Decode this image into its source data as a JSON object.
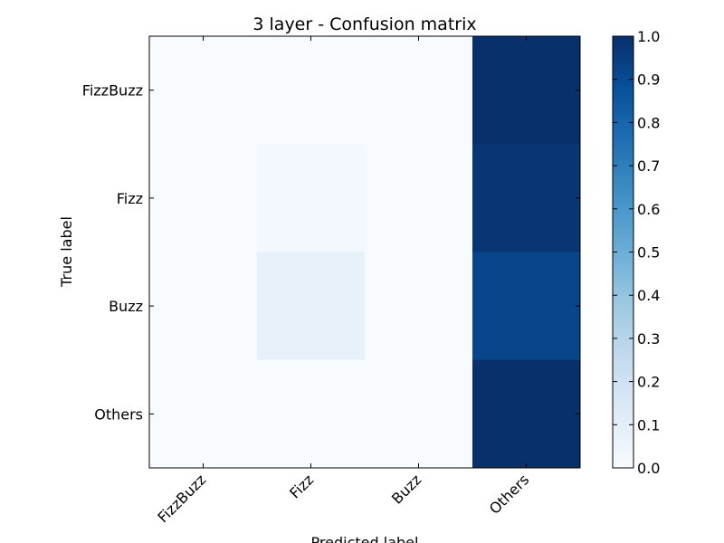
{
  "chart_data": {
    "type": "heatmap",
    "title": "3 layer - Confusion matrix",
    "xlabel": "Predicted label",
    "ylabel": "True label",
    "x_categories": [
      "FizzBuzz",
      "Fizz",
      "Buzz",
      "Others"
    ],
    "y_categories": [
      "FizzBuzz",
      "Fizz",
      "Buzz",
      "Others"
    ],
    "values": [
      [
        0.0,
        0.0,
        0.0,
        1.0
      ],
      [
        0.0,
        0.02,
        0.0,
        0.98
      ],
      [
        0.0,
        0.08,
        0.0,
        0.92
      ],
      [
        0.0,
        0.0,
        0.0,
        1.0
      ]
    ],
    "colorscale": "Blues",
    "color_range": [
      0.0,
      1.0
    ],
    "colorbar_ticks": [
      "0.0",
      "0.1",
      "0.2",
      "0.3",
      "0.4",
      "0.5",
      "0.6",
      "0.7",
      "0.8",
      "0.9",
      "1.0"
    ],
    "grid": false
  }
}
